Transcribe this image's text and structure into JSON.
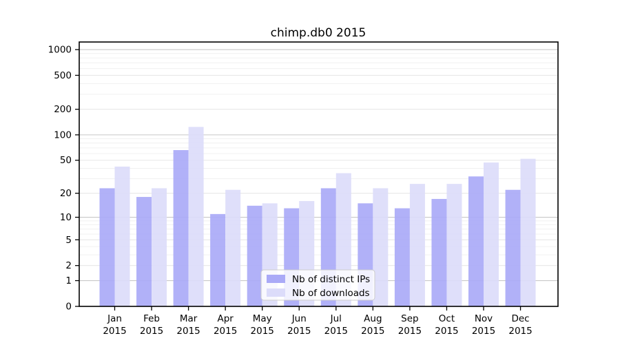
{
  "chart_data": {
    "type": "bar",
    "title": "chimp.db0 2015",
    "scale": "log1p",
    "year": "2015",
    "categories": [
      "Jan",
      "Feb",
      "Mar",
      "Apr",
      "May",
      "Jun",
      "Jul",
      "Aug",
      "Sep",
      "Oct",
      "Nov",
      "Dec"
    ],
    "series": [
      {
        "name": "Nb of distinct IPs",
        "color": "#aaaaf7",
        "values": [
          23,
          18,
          66,
          11,
          14,
          13,
          23,
          15,
          13,
          17,
          32,
          22
        ]
      },
      {
        "name": "Nb of downloads",
        "color": "#dcdcfa",
        "values": [
          42,
          23,
          124,
          22,
          15,
          16,
          35,
          23,
          26,
          26,
          47,
          52
        ]
      }
    ],
    "y_ticks": [
      0,
      1,
      2,
      5,
      10,
      20,
      50,
      100,
      200,
      500,
      1000
    ],
    "y_minor_ticks": [
      3,
      4,
      6,
      7,
      8,
      9,
      30,
      40,
      60,
      70,
      80,
      90,
      300,
      400,
      600,
      700,
      800,
      900
    ],
    "ylim": [
      0,
      1230
    ],
    "grid": true,
    "legend_position": "lower center",
    "colors": {
      "axis": "#000000",
      "grid_decade": "#c8c8c8",
      "grid_labeled": "#e7e7e7",
      "grid_minor": "#f0f0f0",
      "legend_border": "#cccccc",
      "background": "#ffffff"
    }
  }
}
